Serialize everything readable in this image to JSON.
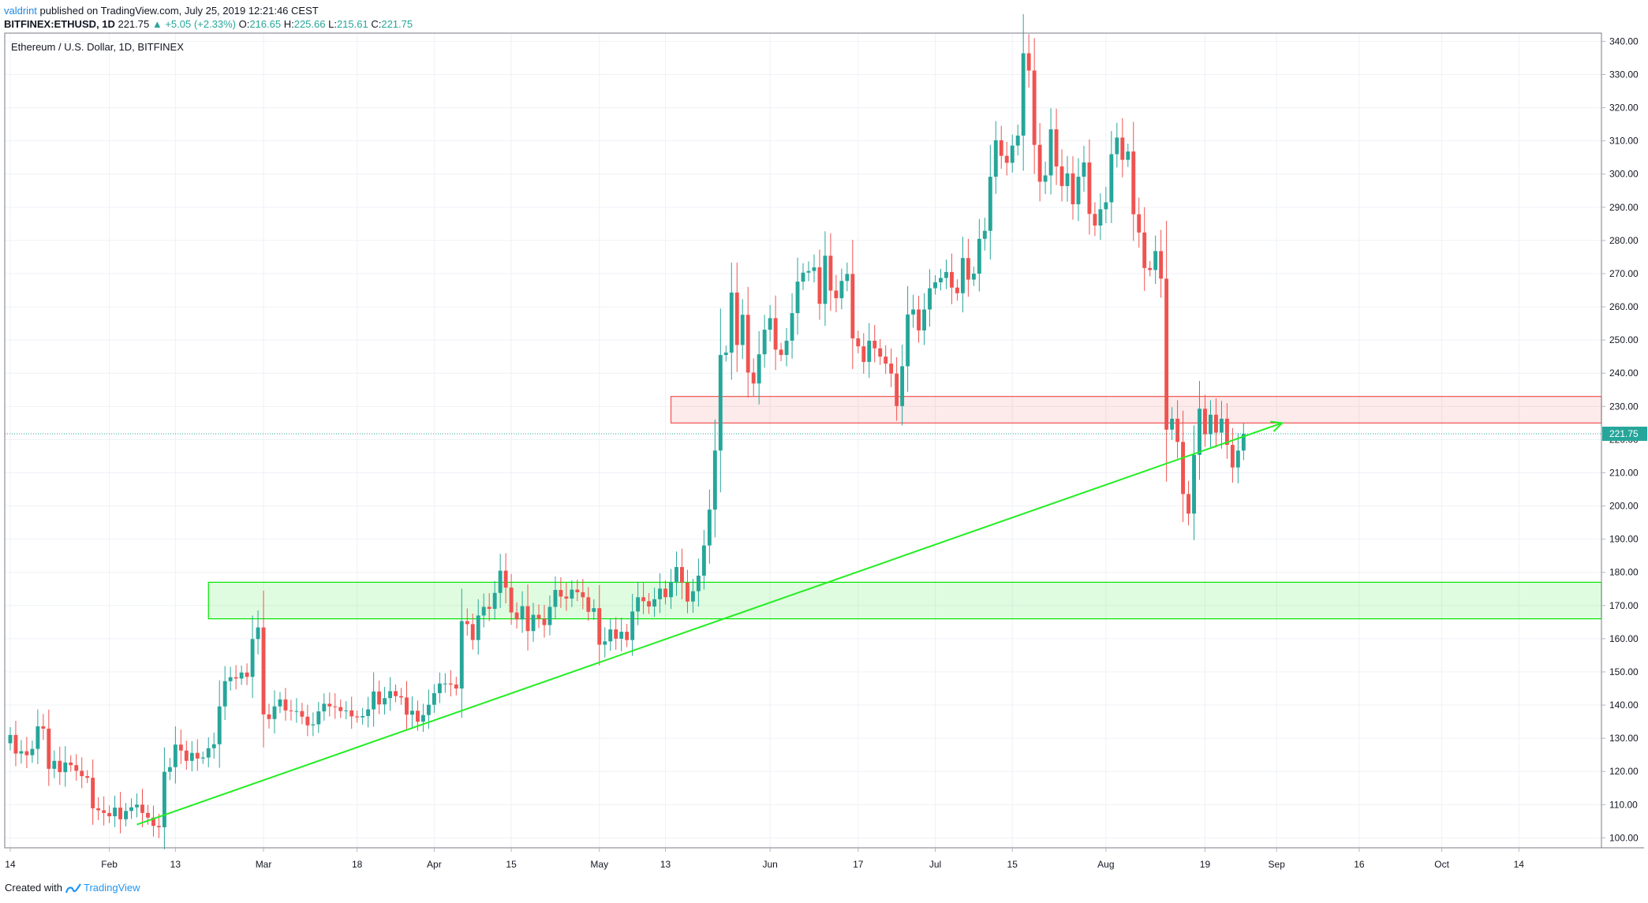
{
  "header": {
    "author": "valdrint",
    "published_text": "published on TradingView.com, July 25, 2019 12:21:46 CEST",
    "symbol": "BITFINEX:ETHUSD, 1D",
    "last": "221.75",
    "change": "▲ +5.05 (+2.33%)",
    "o_label": "O:",
    "o_value": "216.65",
    "h_label": "H:",
    "h_value": "225.66",
    "l_label": "L:",
    "l_value": "215.61",
    "c_label": "C:",
    "c_value": "221.75"
  },
  "footer": {
    "created_with": "Created with",
    "brand": "TradingView"
  },
  "chart_data": {
    "type": "candlestick",
    "title": "Ethereum / U.S. Dollar, 1D, BITFINEX",
    "ylim": [
      97,
      342
    ],
    "y_ticks": [
      100,
      110,
      120,
      130,
      140,
      150,
      160,
      170,
      180,
      190,
      200,
      210,
      220,
      230,
      240,
      250,
      260,
      270,
      280,
      290,
      300,
      310,
      320,
      330,
      340
    ],
    "y_tick_labels": [
      "100.00",
      "110.00",
      "120.00",
      "130.00",
      "140.00",
      "150.00",
      "160.00",
      "170.00",
      "180.00",
      "190.00",
      "200.00",
      "210.00",
      "220.00",
      "230.00",
      "240.00",
      "250.00",
      "260.00",
      "270.00",
      "280.00",
      "290.00",
      "300.00",
      "310.00",
      "320.00",
      "330.00",
      "340.00"
    ],
    "x_labels": [
      {
        "label": "14",
        "day": 0
      },
      {
        "label": "Feb",
        "day": 18
      },
      {
        "label": "13",
        "day": 30
      },
      {
        "label": "Mar",
        "day": 46
      },
      {
        "label": "18",
        "day": 63
      },
      {
        "label": "Apr",
        "day": 77
      },
      {
        "label": "15",
        "day": 91
      },
      {
        "label": "May",
        "day": 107
      },
      {
        "label": "13",
        "day": 119
      },
      {
        "label": "Jun",
        "day": 138
      },
      {
        "label": "17",
        "day": 154
      },
      {
        "label": "Jul",
        "day": 168
      },
      {
        "label": "15",
        "day": 182
      },
      {
        "label": "Aug",
        "day": 199
      },
      {
        "label": "19",
        "day": 217
      },
      {
        "label": "Sep",
        "day": 230
      },
      {
        "label": "16",
        "day": 245
      },
      {
        "label": "Oct",
        "day": 260
      },
      {
        "label": "14",
        "day": 274
      }
    ],
    "x_range_days": [
      -1,
      289
    ],
    "last_price": 221.75,
    "last_price_label": "221.75",
    "colors": {
      "up": "#26a69a",
      "down": "#ef5350",
      "support_zone": "#00e600",
      "resistance_zone": "#ef5350",
      "trendline": "#22ee22",
      "last_price_line": "#26a69a",
      "grid": "#eef1f6"
    },
    "support_zone": {
      "day_start": 36,
      "day_end": 289,
      "low": 166,
      "high": 177
    },
    "resistance_zone": {
      "day_start": 120,
      "day_end": 289,
      "low": 225,
      "high": 233
    },
    "trendline": {
      "from": {
        "day": 23,
        "price": 104
      },
      "to": {
        "day": 231,
        "price": 225
      }
    },
    "closes": [
      131.0,
      125.4,
      126.1,
      124.9,
      126.8,
      133.6,
      132.9,
      120.8,
      123.2,
      119.8,
      122.7,
      121.9,
      120.2,
      118.6,
      118.1,
      108.9,
      108.3,
      107.5,
      106.5,
      109.1,
      105.6,
      108.1,
      109.2,
      110.0,
      107.5,
      106.1,
      103.6,
      103.2,
      119.9,
      121.3,
      128.1,
      126.3,
      123.2,
      125.6,
      123.9,
      124.2,
      127.0,
      128.2,
      139.6,
      147.2,
      148.4,
      148.0,
      149.8,
      148.5,
      159.9,
      163.4,
      137.2,
      135.8,
      139.6,
      141.7,
      138.4,
      138.2,
      138.2,
      136.5,
      133.9,
      134.2,
      138.1,
      140.4,
      139.6,
      139.4,
      138.2,
      138.4,
      136.6,
      136.3,
      136.7,
      138.7,
      144.1,
      140.2,
      142.1,
      144.2,
      142.7,
      142.3,
      137.1,
      138.3,
      135.0,
      137.0,
      140.1,
      143.6,
      146.5,
      146.5,
      146.2,
      145.0,
      165.3,
      164.4,
      159.6,
      167.0,
      169.6,
      169.0,
      173.8,
      180.5,
      175.4,
      167.9,
      165.8,
      169.8,
      162.3,
      167.2,
      166.0,
      164.1,
      169.6,
      174.7,
      172.7,
      172.1,
      174.8,
      174.0,
      172.5,
      168.1,
      169.2,
      158.2,
      159.2,
      162.8,
      160.0,
      162.1,
      159.6,
      168.2,
      172.5,
      171.3,
      169.7,
      171.9,
      175.1,
      172.5,
      177.1,
      181.6,
      176.9,
      171.2,
      174.3,
      179.0,
      188.1,
      198.9,
      216.7,
      245.5,
      246.2,
      264.3,
      248.5,
      257.6,
      240.2,
      236.9,
      245.7,
      253.1,
      256.6,
      247.1,
      245.5,
      249.8,
      258.1,
      267.6,
      270.3,
      270.8,
      271.9,
      260.9,
      275.4,
      264.9,
      262.6,
      267.8,
      269.9,
      250.5,
      248.1,
      243.4,
      249.8,
      247.5,
      245.0,
      242.9,
      239.9,
      230.1,
      242.1,
      257.7,
      259.2,
      252.9,
      259.2,
      265.6,
      267.4,
      268.7,
      270.5,
      265.8,
      264.1,
      274.7,
      268.2,
      270.0,
      280.5,
      282.9,
      299.2,
      310.2,
      305.5,
      303.4,
      308.6,
      311.6,
      336.4,
      331.2,
      308.8,
      297.7,
      299.6,
      313.5,
      302.3,
      296.4,
      300.2,
      290.9,
      299.2,
      303.5,
      288.0,
      284.5,
      289.4,
      291.5,
      306.0,
      311.0,
      304.3,
      306.8,
      287.9,
      282.4,
      271.7,
      271.1,
      276.8,
      268.5,
      223.0,
      226.3,
      219.3,
      203.6,
      197.7,
      215.4,
      229.3,
      221.6,
      227.5,
      222.1,
      226.3,
      218.4,
      211.6,
      216.7,
      221.7
    ]
  }
}
